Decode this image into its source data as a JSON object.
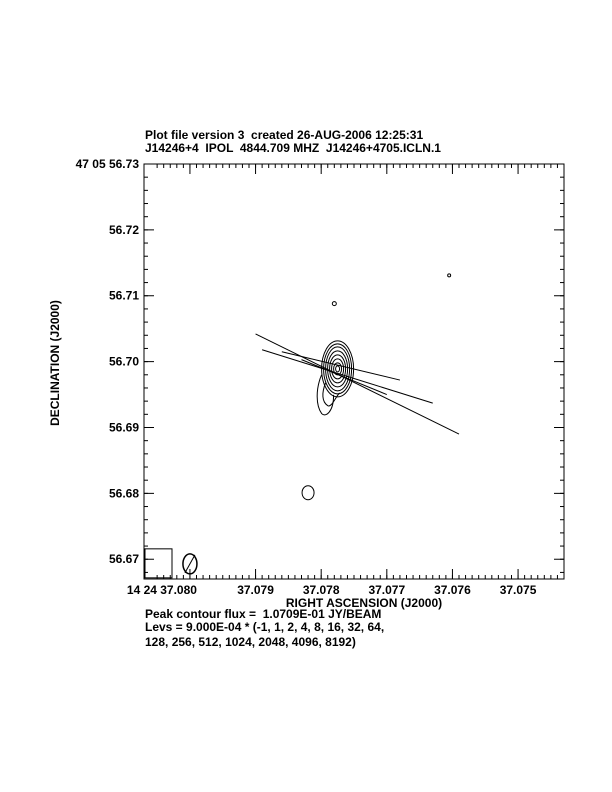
{
  "header": {
    "line1": "Plot file version 3  created 26-AUG-2006 12:25:31",
    "line2": "J14246+4  IPOL  4844.709 MHZ  J14246+4705.ICLN.1"
  },
  "footer": {
    "peak_flux": "Peak contour flux =  1.0709E-01 JY/BEAM",
    "levs_line1": "Levs = 9.000E-04 * (-1, 1, 2, 4, 8, 16, 32, 64,",
    "levs_line2": "128, 256, 512, 1024, 2048, 4096, 8192)"
  },
  "chart_data": {
    "type": "contour",
    "xlabel": "RIGHT ASCENSION (J2000)",
    "ylabel": "DECLINATION (J2000)",
    "x_range_seconds": [
      37.0807,
      37.0743
    ],
    "y_range_arcsec": [
      56.667,
      56.73
    ],
    "x_ticks": [
      {
        "value": 37.08,
        "label": "14 24 37.080"
      },
      {
        "value": 37.079,
        "label": "37.079"
      },
      {
        "value": 37.078,
        "label": "37.078"
      },
      {
        "value": 37.077,
        "label": "37.077"
      },
      {
        "value": 37.076,
        "label": "37.076"
      },
      {
        "value": 37.075,
        "label": "37.075"
      }
    ],
    "y_ticks": [
      {
        "value": 56.73,
        "label": "47 05 56.73"
      },
      {
        "value": 56.72,
        "label": "56.72"
      },
      {
        "value": 56.71,
        "label": "56.71"
      },
      {
        "value": 56.7,
        "label": "56.70"
      },
      {
        "value": 56.69,
        "label": "56.69"
      },
      {
        "value": 56.68,
        "label": "56.68"
      },
      {
        "value": 56.67,
        "label": "56.67"
      }
    ],
    "peak_flux_jy_per_beam": 0.10709,
    "base_level_jy_per_beam": 0.0009,
    "level_multipliers": [
      -1,
      1,
      2,
      4,
      8,
      16,
      32,
      64,
      128,
      256,
      512,
      1024,
      2048,
      4096,
      8192
    ],
    "main_source": {
      "ra": 37.07775,
      "dec": 56.6989
    },
    "tail": {
      "ra": 37.0779,
      "dec": 56.6927
    },
    "secondary_sources": [
      {
        "ra": 37.0782,
        "dec": 56.6801
      },
      {
        "ra": 37.0778,
        "dec": 56.7088
      },
      {
        "ra": 37.07605,
        "dec": 56.7131
      }
    ],
    "vectors": [
      {
        "ra1": 37.079,
        "dec1": 56.7042,
        "ra2": 37.0759,
        "dec2": 56.689
      },
      {
        "ra1": 37.0789,
        "dec1": 56.7018,
        "ra2": 37.0763,
        "dec2": 56.6937
      },
      {
        "ra1": 37.0786,
        "dec1": 56.7015,
        "ra2": 37.0768,
        "dec2": 56.6972
      },
      {
        "ra1": 37.0783,
        "dec1": 56.7003,
        "ra2": 37.077,
        "dec2": 56.695
      }
    ],
    "beam": {
      "ra": 37.08,
      "dec": 56.6693
    }
  }
}
